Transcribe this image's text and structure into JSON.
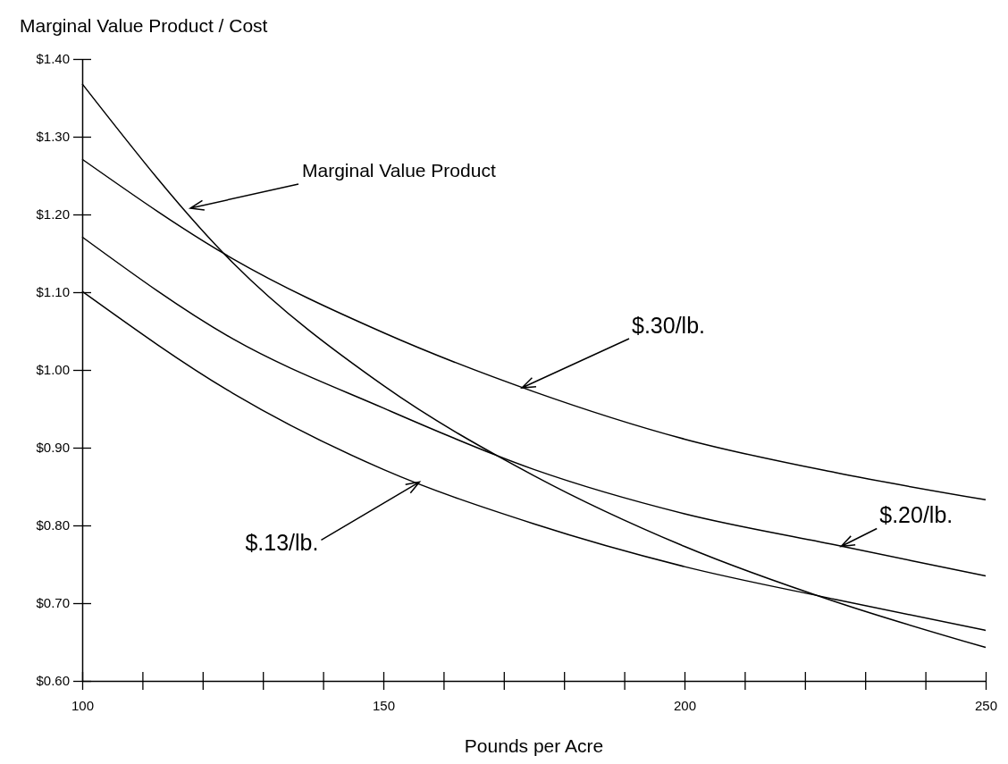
{
  "chart_data": {
    "type": "line",
    "ylabel": "Marginal Value Product / Cost",
    "xlabel": "Pounds per Acre",
    "xlim": [
      100,
      250
    ],
    "xticks": [
      100,
      {
        "value": 110,
        "label": null
      },
      {
        "value": 120,
        "label": null
      },
      {
        "value": 130,
        "label": null
      },
      {
        "value": 140,
        "label": null
      },
      150,
      {
        "value": 160,
        "label": null
      },
      {
        "value": 170,
        "label": null
      },
      {
        "value": 180,
        "label": null
      },
      {
        "value": 190,
        "label": null
      },
      200,
      {
        "value": 210,
        "label": null
      },
      {
        "value": 220,
        "label": null
      },
      {
        "value": 230,
        "label": null
      },
      {
        "value": 240,
        "label": null
      },
      250
    ],
    "ylim": [
      0.6,
      1.4
    ],
    "yticks": [
      {
        "value": 0.6,
        "label": "$0.60"
      },
      {
        "value": 0.7,
        "label": "$0.70"
      },
      {
        "value": 0.8,
        "label": "$0.80"
      },
      {
        "value": 0.9,
        "label": "$0.90"
      },
      {
        "value": 1.0,
        "label": "$1.00"
      },
      {
        "value": 1.1,
        "label": "$1.10"
      },
      {
        "value": 1.2,
        "label": "$1.20"
      },
      {
        "value": 1.3,
        "label": "$1.30"
      },
      {
        "value": 1.4,
        "label": "$1.40"
      }
    ],
    "grid": false,
    "marker": "none",
    "line_style": "solid",
    "x": [
      100,
      125,
      150,
      175,
      200,
      225,
      250
    ],
    "series": [
      {
        "color": "#000000",
        "values": [
          1.368,
          1.138,
          0.98,
          0.864,
          0.773,
          0.702,
          0.643
        ]
      },
      {
        "color": "#000000",
        "values": [
          1.271,
          1.143,
          1.048,
          0.972,
          0.911,
          0.868,
          0.833
        ]
      },
      {
        "color": "#000000",
        "values": [
          1.171,
          1.04,
          0.951,
          0.872,
          0.815,
          0.775,
          0.735
        ]
      },
      {
        "color": "#000000",
        "values": [
          1.101,
          0.97,
          0.872,
          0.802,
          0.747,
          0.705,
          0.665
        ]
      }
    ],
    "annotations": [
      "Marginal Value Product",
      {
        "text": "$.30/lb.",
        "x": 173,
        "y": 0.977
      },
      {
        "text": "$.20/lb.",
        "x": 226,
        "y": 0.773
      },
      {
        "text": "$.13/lb.",
        "x": 156,
        "y": 0.856
      }
    ]
  }
}
